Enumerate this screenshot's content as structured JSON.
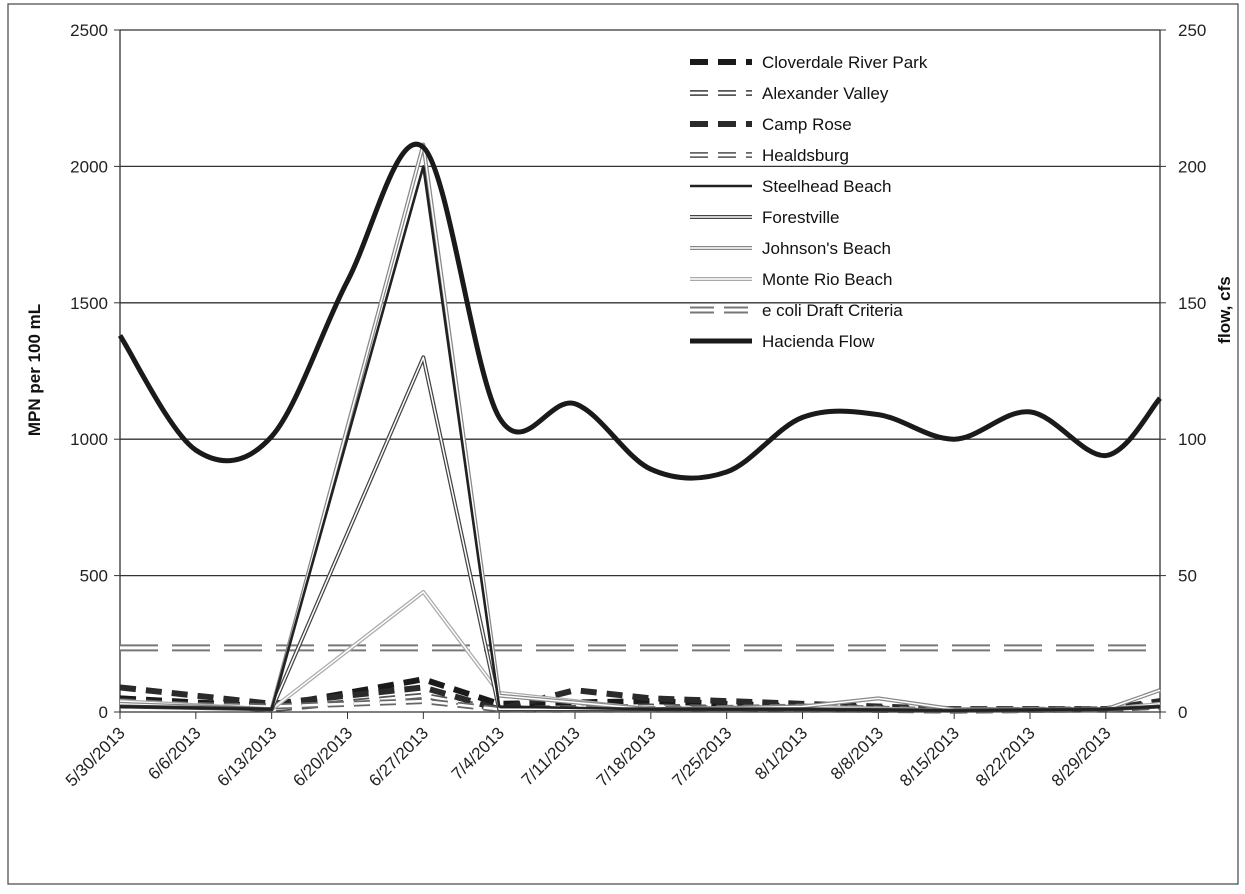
{
  "chart_data": {
    "type": "line",
    "title": "",
    "xlabel": "",
    "ylabel": "MPN per 100 mL",
    "y2label": "flow, cfs",
    "ylim": [
      0,
      2500
    ],
    "y2lim": [
      0,
      250
    ],
    "yticks": [
      "0",
      "500",
      "1000",
      "1500",
      "2000",
      "2500"
    ],
    "y2ticks": [
      "0",
      "50",
      "100",
      "150",
      "200",
      "250"
    ],
    "grid": true,
    "legend_position": "top-right",
    "categories": [
      "5/30/2013",
      "6/6/2013",
      "6/13/2013",
      "6/20/2013",
      "6/27/2013",
      "7/4/2013",
      "7/11/2013",
      "7/18/2013",
      "7/25/2013",
      "8/1/2013",
      "8/8/2013",
      "8/15/2013",
      "8/22/2013",
      "8/29/2013"
    ],
    "series": [
      {
        "name": "Cloverdale River Park",
        "axis": "left",
        "style": "dash-thick",
        "color": "#1a1a1a",
        "x": [
          "5/30/2013",
          "6/13/2013",
          "6/27/2013",
          "7/4/2013",
          "7/18/2013",
          "8/1/2013",
          "8/15/2013",
          "8/29/2013",
          "9/3/2013"
        ],
        "values": [
          50,
          20,
          120,
          30,
          40,
          20,
          10,
          10,
          30
        ]
      },
      {
        "name": "Alexander Valley",
        "axis": "left",
        "style": "dash-hollow",
        "color": "#555555",
        "x": [
          "5/30/2013",
          "6/13/2013",
          "6/27/2013",
          "7/4/2013",
          "7/18/2013",
          "8/1/2013",
          "8/15/2013",
          "8/29/2013",
          "9/3/2013"
        ],
        "values": [
          40,
          10,
          60,
          10,
          20,
          10,
          5,
          10,
          20
        ]
      },
      {
        "name": "Camp Rose",
        "axis": "left",
        "style": "dash-thick",
        "color": "#2a2a2a",
        "x": [
          "5/30/2013",
          "6/13/2013",
          "6/27/2013",
          "7/4/2013",
          "7/11/2013",
          "7/18/2013",
          "8/1/2013",
          "8/15/2013",
          "8/29/2013",
          "9/3/2013"
        ],
        "values": [
          90,
          30,
          90,
          10,
          80,
          50,
          30,
          10,
          10,
          40
        ]
      },
      {
        "name": "Healdsburg",
        "axis": "left",
        "style": "dash-hollow",
        "color": "#666666",
        "x": [
          "5/30/2013",
          "6/13/2013",
          "6/27/2013",
          "7/4/2013",
          "7/18/2013",
          "8/1/2013",
          "8/15/2013",
          "8/29/2013",
          "9/3/2013"
        ],
        "values": [
          30,
          20,
          40,
          10,
          10,
          20,
          5,
          10,
          20
        ]
      },
      {
        "name": "Steelhead Beach",
        "axis": "left",
        "style": "solid",
        "color": "#222222",
        "x": [
          "5/30/2013",
          "6/13/2013",
          "6/27/2013",
          "7/4/2013",
          "7/18/2013",
          "8/1/2013",
          "8/15/2013",
          "8/29/2013",
          "9/3/2013"
        ],
        "values": [
          20,
          10,
          2000,
          20,
          10,
          10,
          5,
          10,
          20
        ]
      },
      {
        "name": "Forestville",
        "axis": "left",
        "style": "solid-hollow",
        "color": "#444444",
        "x": [
          "5/30/2013",
          "6/13/2013",
          "6/27/2013",
          "7/4/2013",
          "7/18/2013",
          "8/1/2013",
          "8/15/2013",
          "8/29/2013",
          "9/3/2013"
        ],
        "values": [
          20,
          10,
          1300,
          10,
          10,
          10,
          5,
          10,
          20
        ]
      },
      {
        "name": "Johnson's Beach",
        "axis": "left",
        "style": "solid-hollow",
        "color": "#888888",
        "x": [
          "5/30/2013",
          "6/13/2013",
          "6/27/2013",
          "7/4/2013",
          "7/18/2013",
          "8/1/2013",
          "8/8/2013",
          "8/15/2013",
          "8/29/2013",
          "9/3/2013"
        ],
        "values": [
          30,
          10,
          2080,
          60,
          10,
          20,
          50,
          10,
          10,
          80
        ]
      },
      {
        "name": "Monte Rio Beach",
        "axis": "left",
        "style": "solid-hollow",
        "color": "#aaaaaa",
        "x": [
          "5/30/2013",
          "6/13/2013",
          "6/27/2013",
          "7/4/2013",
          "7/18/2013",
          "8/1/2013",
          "8/15/2013",
          "8/29/2013",
          "9/3/2013"
        ],
        "values": [
          40,
          10,
          440,
          70,
          10,
          20,
          5,
          10,
          30
        ]
      },
      {
        "name": "e coli Draft Criteria",
        "axis": "left",
        "style": "dash-hollow-long",
        "color": "#777777",
        "x": [
          "5/30/2013",
          "9/3/2013"
        ],
        "values": [
          235,
          235
        ]
      },
      {
        "name": "Hacienda Flow",
        "axis": "right",
        "style": "solid-thick",
        "color": "#1a1a1a",
        "x": [
          "5/30/2013",
          "6/6/2013",
          "6/13/2013",
          "6/20/2013",
          "6/27/2013",
          "7/4/2013",
          "7/11/2013",
          "7/18/2013",
          "7/25/2013",
          "8/1/2013",
          "8/8/2013",
          "8/15/2013",
          "8/22/2013",
          "8/29/2013",
          "9/3/2013"
        ],
        "values": [
          138,
          96,
          101,
          158,
          207,
          108,
          113,
          89,
          88,
          108,
          109,
          100,
          110,
          94,
          115
        ]
      }
    ]
  }
}
